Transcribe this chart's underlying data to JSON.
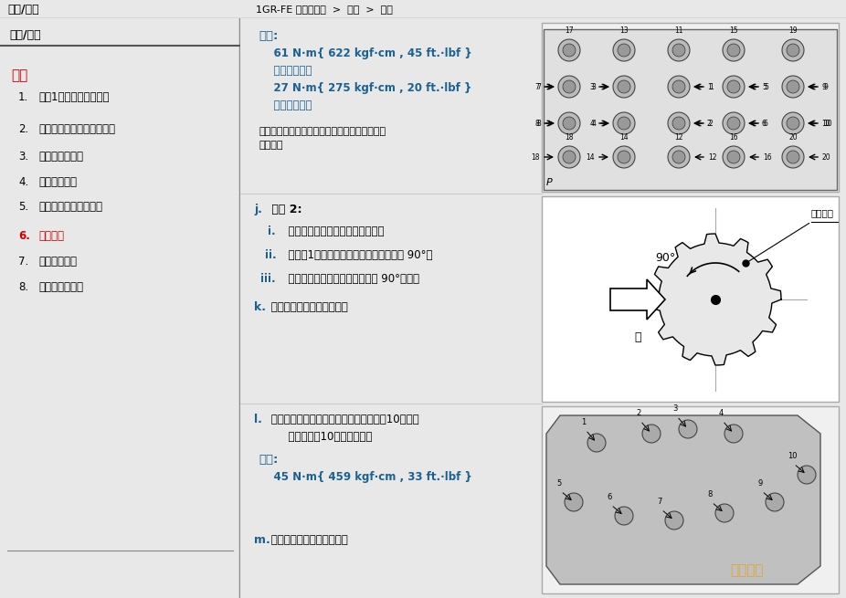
{
  "page_bg": "#e8e8e8",
  "content_bg": "#ffffff",
  "sidebar_bg": "#d0d0d0",
  "header_bg": "#c8c8c8",
  "header_text": "安装/拆卸",
  "header_text2": "1GR-FE 发动机机械  >  曲轴  >  重装",
  "header_color": "#000000",
  "sidebar_title": "重装",
  "sidebar_title_color": "#cc0000",
  "sidebar_items": [
    "安装1号机油喷嘴分总成",
    "安装带活塞销的活塞分总成",
    "安装活塞环组件",
    "安装曲轴轴承",
    "安装曲轴止推垫圈组件",
    "安装曲轴",
    "安装连杆轴承",
    "安装活塞和连杆"
  ],
  "sidebar_item_colors": [
    "#000000",
    "#000000",
    "#000000",
    "#000000",
    "#000000",
    "#cc0000",
    "#000000",
    "#000000"
  ],
  "torque_label1": "扭矩:",
  "torque_color": "#1a6090",
  "torque_line1": "    61 N·m{ 622 kgf·cm , 45 ft.·lbf }",
  "torque_line2": "    用于内侧位置",
  "torque_line3": "    27 N·m{ 275 kgf·cm , 20 ft.·lbf }",
  "torque_line4": "    用于外侧位置",
  "torque_note": "如果任一主轴承盖螺栓不符合规定扭矩，则应进\n行更换。",
  "torque_label2": "扭矩:",
  "torque_line5": "    45 N·m{ 459 kgf·cm , 33 ft.·lbf }",
  "section_j_label": "j.",
  "section_j_text": " 步骤 2:",
  "section_k_label": "k.",
  "section_k_text": " 检查并确认曲轴转动平稳。",
  "section_l_label": "l.",
  "section_l_text": " 按如图所示顺序，分步安装并均匀地拧紧10个主轴\n      承盖螺栓和10个密封垫圈。",
  "section_m_label": "m.",
  "section_m_text": " 检查并确认曲轴转动平稳。",
  "step_i_label": "i.",
  "step_i_text": "  用油漆在轴承盖螺栓前端做标记。",
  "step_ii_label": "ii.",
  "step_ii_text": "  按步骤1所示的顺序将轴承盖螺栓再拧紧 90°。",
  "step_iii_label": "iii.",
  "step_iii_text": "  检查并确认涂漆标记目前位于前 90°角处。",
  "label_color": "#1a6090",
  "text_color": "#000000",
  "fig_border_color": "#aaaaaa",
  "watermark_text": "汽配帮手",
  "watermark_color": "#e8a020",
  "div_color": "#cccccc"
}
